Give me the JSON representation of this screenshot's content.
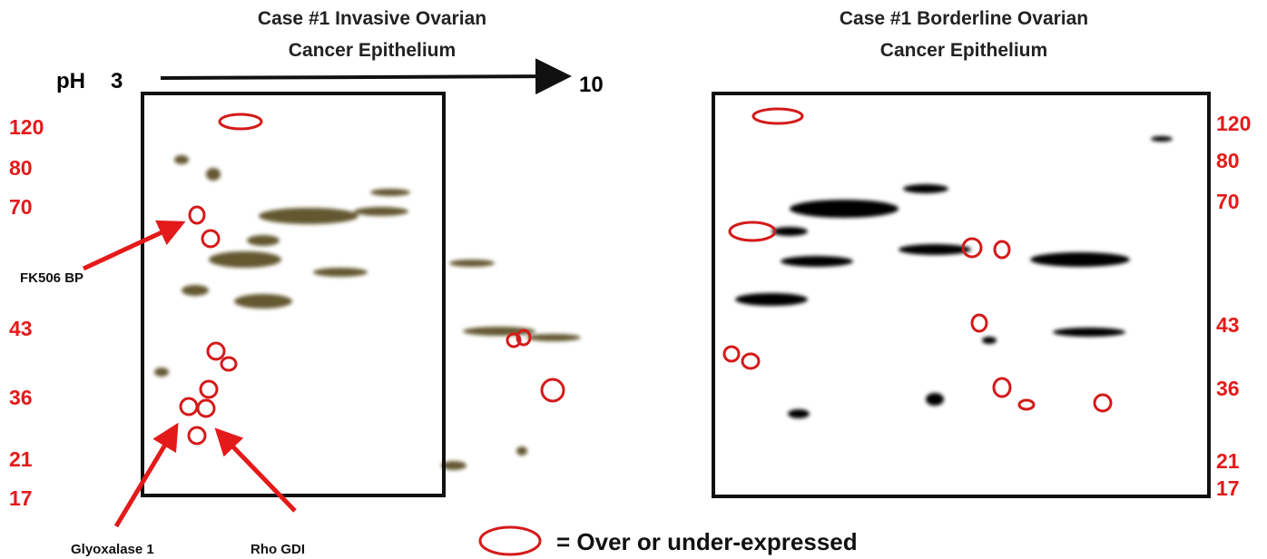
{
  "left_panel": {
    "title_lines": [
      "Case #1 Invasive Ovarian",
      "Cancer Epithelium"
    ],
    "ph_label": "pH",
    "ph_start": 3,
    "ph_end": 10,
    "mw_markers": [
      120,
      80,
      70,
      43,
      36,
      21,
      17
    ]
  },
  "right_panel": {
    "title_lines": [
      "Case #1 Borderline Ovarian",
      "Cancer Epithelium"
    ],
    "mw_markers": [
      120,
      80,
      70,
      43,
      36,
      21,
      17
    ]
  },
  "annotations": [
    "FK506 BP",
    "Glyoxalase 1",
    "Rho GDI"
  ],
  "legend": {
    "text": "= Over or under-expressed"
  }
}
